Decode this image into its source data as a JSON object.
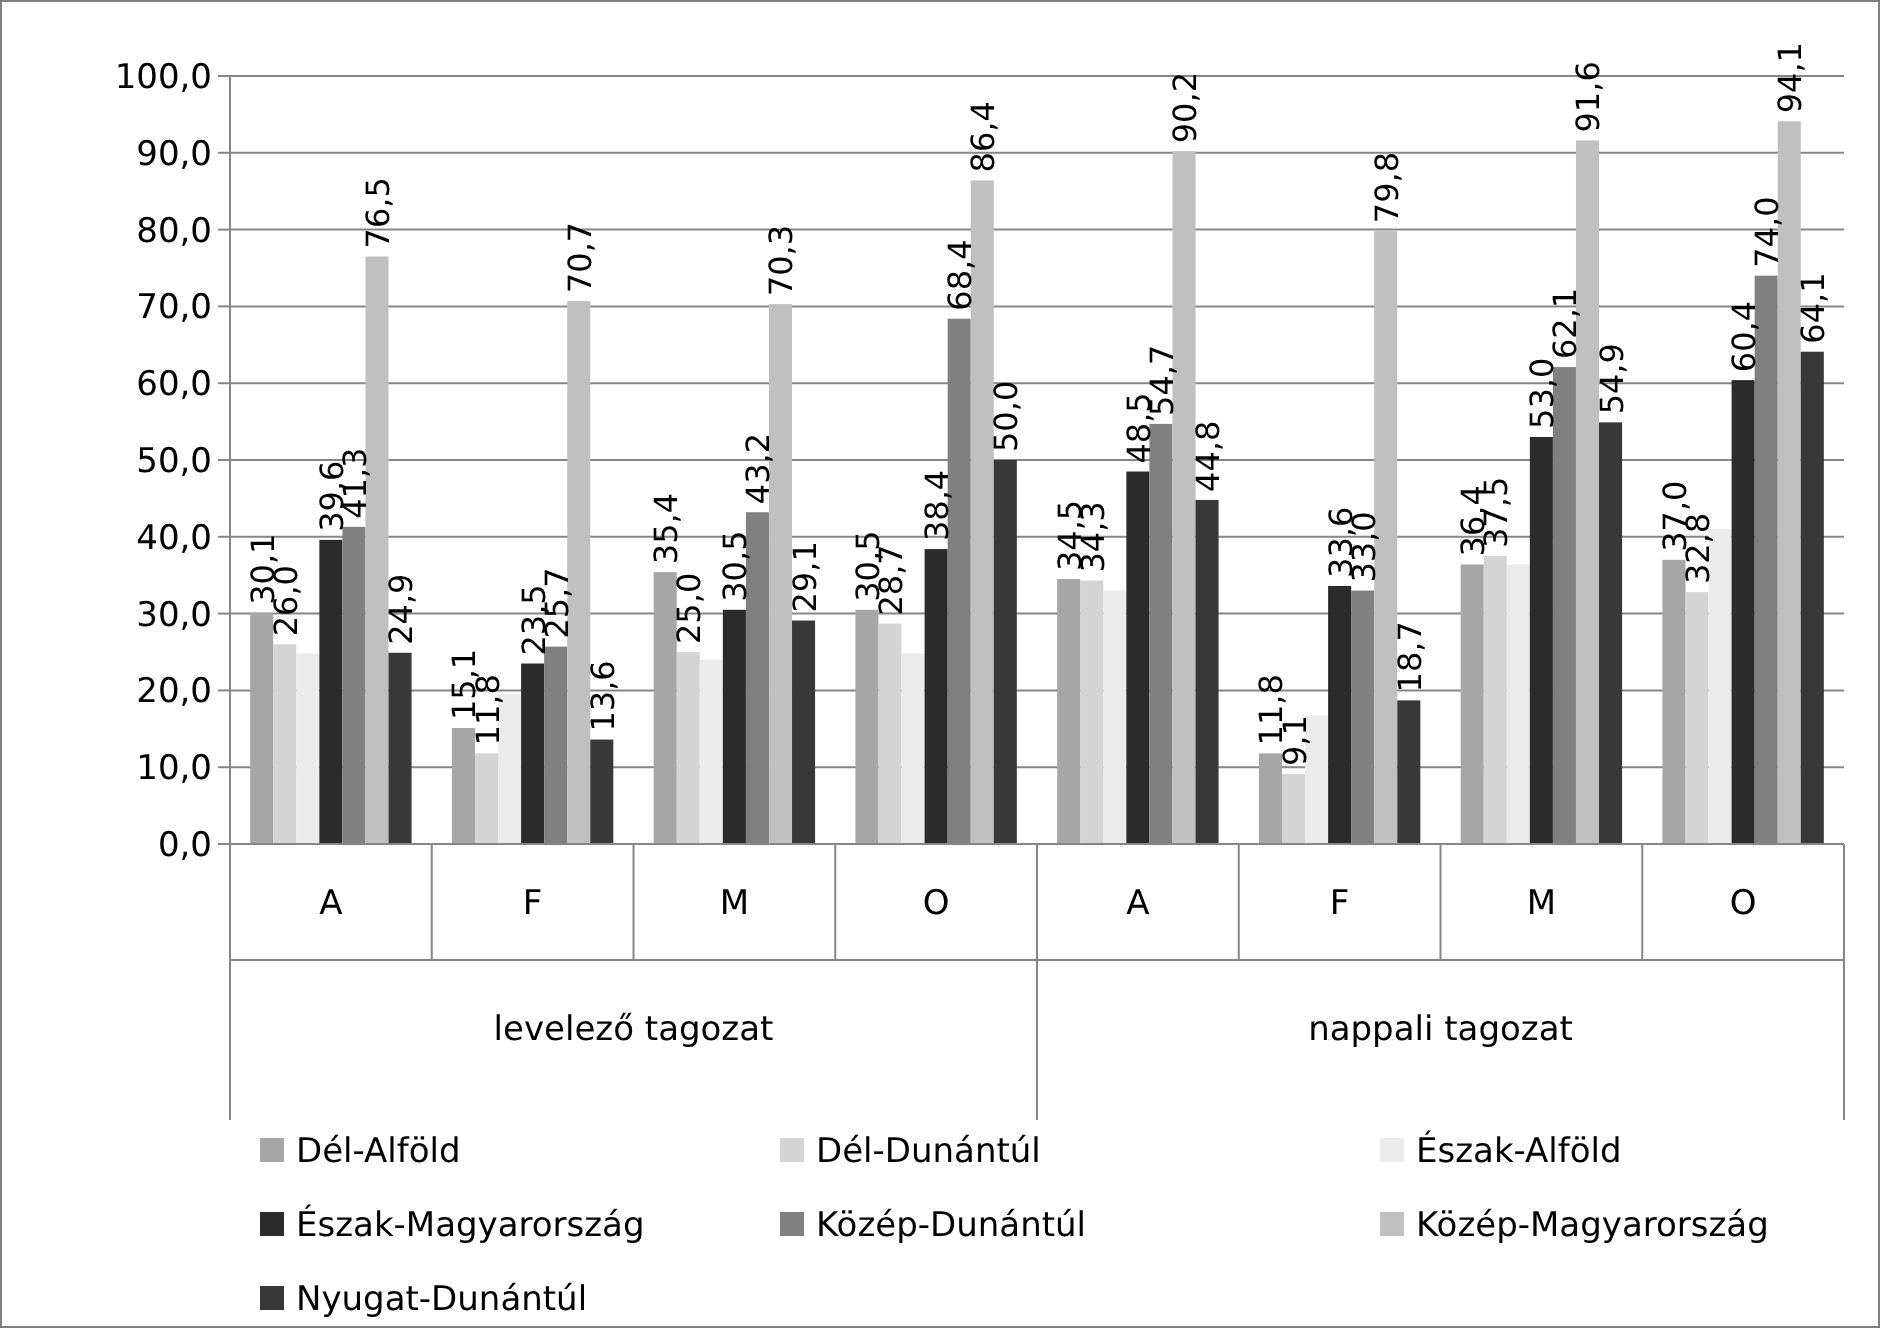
{
  "chart_data": {
    "type": "bar",
    "categories": [
      "A",
      "F",
      "M",
      "O",
      "A",
      "F",
      "M",
      "O"
    ],
    "annotations": [
      "levelező tagozat",
      "nappali tagozat"
    ],
    "ylim": [
      0,
      100
    ],
    "yticks": [
      {
        "value": 0,
        "label": "0,0"
      },
      {
        "value": 10,
        "label": "10,0"
      },
      {
        "value": 20,
        "label": "20,0"
      },
      {
        "value": 30,
        "label": "30,0"
      },
      {
        "value": 40,
        "label": "40,0"
      },
      {
        "value": 50,
        "label": "50,0"
      },
      {
        "value": 60,
        "label": "60,0"
      },
      {
        "value": 70,
        "label": "70,0"
      },
      {
        "value": 80,
        "label": "80,0"
      },
      {
        "value": 90,
        "label": "90,0"
      },
      {
        "value": 100,
        "label": "100,0"
      }
    ],
    "grid": "y",
    "legend": "bottom",
    "series": [
      {
        "name": "Dél-Alföld",
        "color": "#a6a6a6",
        "values": [
          30.1,
          15.1,
          35.4,
          30.5,
          34.5,
          11.8,
          36.4,
          37.0
        ],
        "value_labels": [
          "30,1",
          "15,1",
          "35,4",
          "30,5",
          "34,5",
          "11,8",
          "36,4",
          "37,0"
        ]
      },
      {
        "name": "Dél-Dunántúl",
        "color": "#d4d4d4",
        "values": [
          26.0,
          11.8,
          25.0,
          28.7,
          34.3,
          9.1,
          37.5,
          32.8
        ],
        "value_labels": [
          "26,0",
          "11,8",
          "25,0",
          "28,7",
          "34,3",
          "9,1",
          "37,5",
          "32,8"
        ]
      },
      {
        "name": "Észak-Alföld",
        "color": "#ebebeb",
        "values": [
          24.8,
          19.5,
          24.0,
          24.8,
          33.0,
          16.7,
          36.4,
          41.0
        ]
      },
      {
        "name": "Észak-Magyarország",
        "color": "#2b2b2b",
        "values": [
          39.6,
          23.5,
          30.5,
          38.4,
          48.5,
          33.6,
          53.0,
          60.4
        ],
        "value_labels": [
          "39,6",
          "23,5",
          "30,5",
          "38,4",
          "48,5",
          "33,6",
          "53,0",
          "60,4"
        ]
      },
      {
        "name": "Közép-Dunántúl",
        "color": "#808080",
        "values": [
          41.3,
          25.7,
          43.2,
          68.4,
          54.7,
          33.0,
          62.1,
          74.0
        ],
        "value_labels": [
          "41,3",
          "25,7",
          "43,2",
          "68,4",
          "54,7",
          "33,0",
          "62,1",
          "74,0"
        ]
      },
      {
        "name": "Közép-Magyarország",
        "color": "#c0c0c0",
        "values": [
          76.5,
          70.7,
          70.3,
          86.4,
          90.2,
          79.8,
          91.6,
          94.1
        ],
        "value_labels": [
          "76,5",
          "70,7",
          "70,3",
          "86,4",
          "90,2",
          "79,8",
          "91,6",
          "94,1"
        ]
      },
      {
        "name": "Nyugat-Dunántúl",
        "color": "#383838",
        "values": [
          24.9,
          13.6,
          29.1,
          50.0,
          44.8,
          18.7,
          54.9,
          64.1
        ],
        "value_labels": [
          "24,9",
          "13,6",
          "29,1",
          "50,0",
          "44,8",
          "18,7",
          "54,9",
          "64,1"
        ]
      }
    ]
  }
}
